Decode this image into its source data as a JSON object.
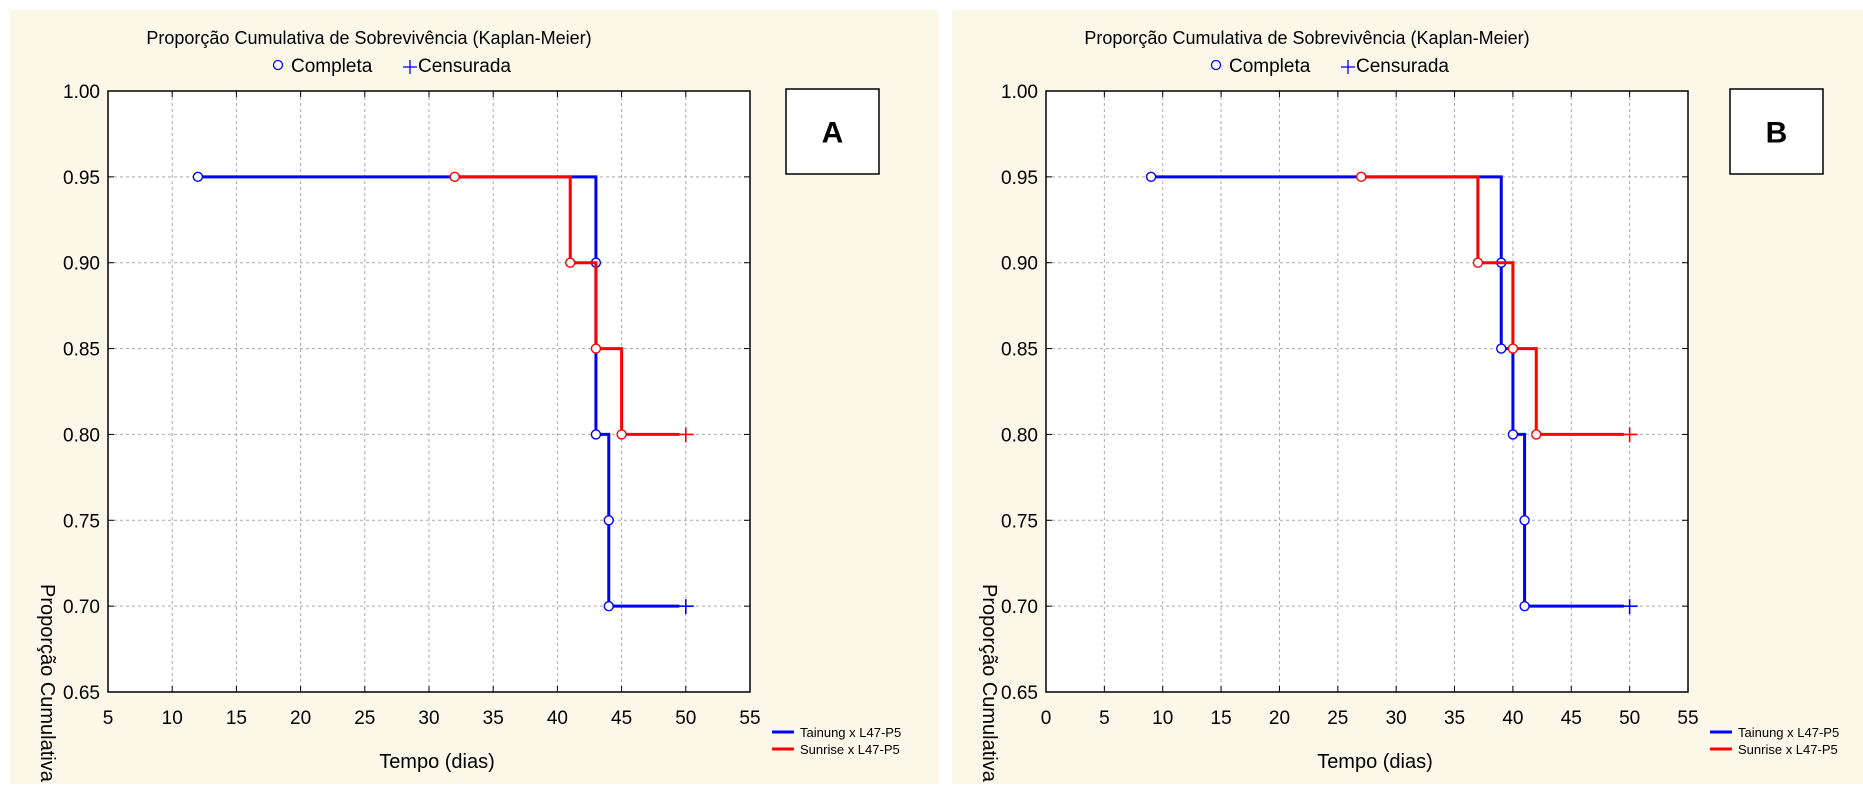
{
  "figure": {
    "background": "#ffffff",
    "panel_background": "#fbf7e9",
    "colors": {
      "series_1": "#0000ff",
      "series_2": "#ff0000",
      "grid": "#a9a9a9",
      "axis": "#000000"
    }
  },
  "chart_data": [
    {
      "type": "line",
      "panel_label": "A",
      "title": "Proporção Cumulativa de Sobrevivência (Kaplan-Meier)",
      "marker_legend": {
        "complete_label": "Completa",
        "censored_label": "Censurada"
      },
      "xlabel": "Tempo (dias)",
      "ylabel": "Proporção Cumulativa",
      "xlim": [
        5,
        55
      ],
      "ylim": [
        0.65,
        1.0
      ],
      "xticks": [
        "5",
        "10",
        "15",
        "20",
        "25",
        "30",
        "35",
        "40",
        "45",
        "50",
        "55"
      ],
      "yticks": [
        "0.65",
        "0.70",
        "0.75",
        "0.80",
        "0.85",
        "0.90",
        "0.95",
        "1.00"
      ],
      "grid": true,
      "series": [
        {
          "name": "Tainung x L47-P5",
          "color": "#0000ff",
          "steps": [
            [
              12,
              0.95
            ],
            [
              43,
              0.9
            ],
            [
              43,
              0.8
            ],
            [
              44,
              0.75
            ],
            [
              44,
              0.7
            ]
          ],
          "end_x": 49.5,
          "completed": [
            [
              12,
              0.95
            ],
            [
              43,
              0.9
            ],
            [
              43,
              0.8
            ],
            [
              44,
              0.75
            ],
            [
              44,
              0.7
            ]
          ],
          "censored": [
            [
              50,
              0.7
            ]
          ]
        },
        {
          "name": "Sunrise x L47-P5",
          "color": "#ff0000",
          "steps": [
            [
              32,
              0.95
            ],
            [
              41,
              0.9
            ],
            [
              43,
              0.85
            ],
            [
              45,
              0.8
            ]
          ],
          "end_x": 49.5,
          "completed": [
            [
              32,
              0.95
            ],
            [
              41,
              0.9
            ],
            [
              43,
              0.85
            ],
            [
              45,
              0.8
            ]
          ],
          "censored": [
            [
              50,
              0.8
            ]
          ]
        }
      ]
    },
    {
      "type": "line",
      "panel_label": "B",
      "title": "Proporção Cumulativa de Sobrevivência (Kaplan-Meier)",
      "marker_legend": {
        "complete_label": "Completa",
        "censored_label": "Censurada"
      },
      "xlabel": "Tempo (dias)",
      "ylabel": "Proporção Cumulativa",
      "xlim": [
        0,
        55
      ],
      "ylim": [
        0.65,
        1.0
      ],
      "xticks": [
        "0",
        "5",
        "10",
        "15",
        "20",
        "25",
        "30",
        "35",
        "40",
        "45",
        "50",
        "55"
      ],
      "yticks": [
        "0.65",
        "0.70",
        "0.75",
        "0.80",
        "0.85",
        "0.90",
        "0.95",
        "1.00"
      ],
      "grid": true,
      "series": [
        {
          "name": "Tainung x L47-P5",
          "color": "#0000ff",
          "steps": [
            [
              9,
              0.95
            ],
            [
              39,
              0.85
            ],
            [
              40,
              0.8
            ],
            [
              41,
              0.7
            ]
          ],
          "end_x": 49.5,
          "completed": [
            [
              9,
              0.95
            ],
            [
              39,
              0.9
            ],
            [
              39,
              0.85
            ],
            [
              40,
              0.8
            ],
            [
              41,
              0.75
            ],
            [
              41,
              0.7
            ]
          ],
          "censored": [
            [
              50,
              0.7
            ]
          ]
        },
        {
          "name": "Sunrise x L47-P5",
          "color": "#ff0000",
          "steps": [
            [
              27,
              0.95
            ],
            [
              37,
              0.9
            ],
            [
              40,
              0.85
            ],
            [
              42,
              0.8
            ]
          ],
          "end_x": 49.5,
          "completed": [
            [
              27,
              0.95
            ],
            [
              37,
              0.9
            ],
            [
              40,
              0.85
            ],
            [
              42,
              0.8
            ]
          ],
          "censored": [
            [
              50,
              0.8
            ]
          ]
        }
      ]
    }
  ]
}
